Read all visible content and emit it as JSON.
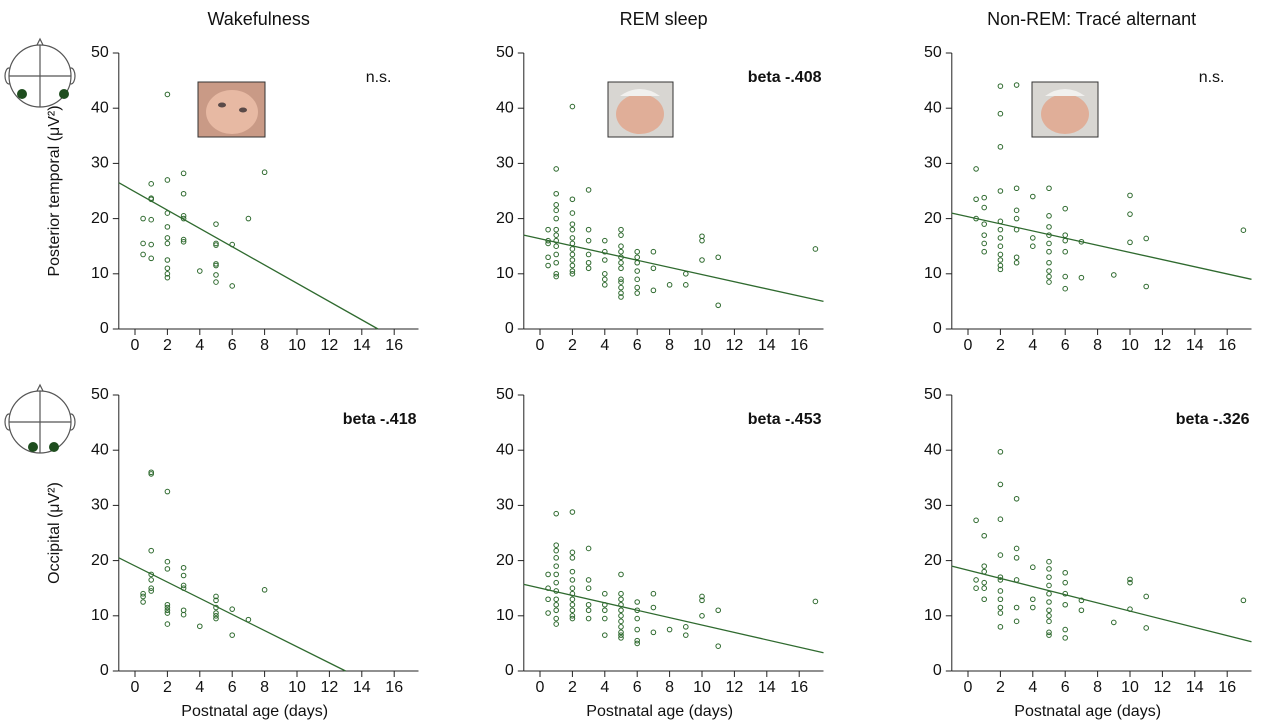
{
  "chart_data": [
    {
      "type": "scatter",
      "title": "Wakefulness",
      "y_label": "Posterior temporal (μV²)",
      "annotation": "n.s.",
      "color": "#2f6a2f",
      "xlim": [
        -1,
        17.5
      ],
      "ylim": [
        0,
        50
      ],
      "xticks": [
        0,
        2,
        4,
        6,
        8,
        10,
        12,
        14,
        16
      ],
      "yticks": [
        0,
        10,
        20,
        30,
        40,
        50
      ],
      "x": [
        0.5,
        0.5,
        0.5,
        1,
        1,
        1,
        1,
        1,
        1,
        2,
        2,
        2,
        2,
        2,
        2,
        2,
        2,
        2,
        2,
        3,
        3,
        3,
        3,
        3,
        3,
        4,
        5,
        5,
        5,
        5,
        5,
        5,
        5,
        6,
        6,
        7,
        8
      ],
      "values": [
        20,
        15.5,
        13.5,
        26.3,
        23.7,
        23.5,
        19.8,
        15.3,
        12.8,
        42.5,
        27,
        21,
        18.5,
        16.5,
        15.5,
        12.5,
        11,
        10,
        9.3,
        28.2,
        24.5,
        20.5,
        20,
        16.2,
        15.8,
        10.5,
        19,
        15.5,
        15.2,
        11.8,
        11.5,
        9.8,
        8.5,
        15.3,
        7.8,
        20,
        28.4
      ],
      "trend": {
        "x": [
          -1,
          15
        ],
        "values": [
          26.5,
          0
        ]
      }
    },
    {
      "type": "scatter",
      "title": "REM sleep",
      "annotation": "beta -.408",
      "color": "#2f6a2f",
      "xlim": [
        -1,
        17.5
      ],
      "ylim": [
        0,
        50
      ],
      "xticks": [
        0,
        2,
        4,
        6,
        8,
        10,
        12,
        14,
        16
      ],
      "yticks": [
        0,
        10,
        20,
        30,
        40,
        50
      ],
      "x": [
        0.5,
        0.5,
        0.5,
        0.5,
        0.5,
        1,
        1,
        1,
        1,
        1,
        1,
        1,
        1,
        1,
        1,
        1,
        1,
        1,
        2,
        2,
        2,
        2,
        2,
        2,
        2,
        2,
        2,
        2,
        2,
        2,
        2,
        3,
        3,
        3,
        3,
        3,
        3,
        4,
        4,
        4,
        4,
        4,
        4,
        5,
        5,
        5,
        5,
        5,
        5,
        5,
        5,
        5,
        5,
        5,
        5,
        6,
        6,
        6,
        6,
        6,
        6,
        6,
        7,
        7,
        7,
        8,
        9,
        9,
        10,
        10,
        10,
        11,
        11,
        17
      ],
      "values": [
        18,
        16,
        15.5,
        13,
        11.5,
        29,
        24.5,
        22.5,
        21.5,
        20,
        18,
        17,
        16,
        15,
        13.5,
        12,
        10,
        9.5,
        40.3,
        23.5,
        21,
        19,
        18,
        16.5,
        15.5,
        14.5,
        13.5,
        12.5,
        11.5,
        10.5,
        10,
        25.2,
        18,
        16,
        13.5,
        12,
        11,
        16,
        14,
        12.5,
        10,
        9,
        8,
        18,
        17,
        15,
        14,
        13,
        12,
        11,
        9,
        8.5,
        7.5,
        6.5,
        5.8,
        14,
        13,
        12,
        10.5,
        9,
        7.5,
        6.5,
        14,
        11,
        7,
        8,
        10,
        8,
        16.8,
        16,
        12.5,
        13,
        4.3,
        14.5
      ],
      "trend": {
        "x": [
          -1,
          17.5
        ],
        "values": [
          17,
          5
        ]
      }
    },
    {
      "type": "scatter",
      "title": "Non-REM: Tracé alternant",
      "annotation": "n.s.",
      "color": "#2f6a2f",
      "xlim": [
        -1,
        17.5
      ],
      "ylim": [
        0,
        50
      ],
      "xticks": [
        0,
        2,
        4,
        6,
        8,
        10,
        12,
        14,
        16
      ],
      "yticks": [
        0,
        10,
        20,
        30,
        40,
        50
      ],
      "x": [
        0.5,
        0.5,
        0.5,
        1,
        1,
        1,
        1,
        1,
        1,
        2,
        2,
        2,
        2,
        2,
        2,
        2,
        2,
        2,
        2,
        2,
        2,
        3,
        3,
        3,
        3,
        3,
        3,
        3,
        4,
        4,
        4,
        5,
        5,
        5,
        5,
        5,
        5,
        5,
        5,
        5,
        5,
        6,
        6,
        6,
        6,
        6,
        6,
        7,
        7,
        9,
        10,
        10,
        10,
        11,
        11,
        17
      ],
      "values": [
        29,
        23.5,
        20,
        23.8,
        22,
        19,
        17,
        15.5,
        14,
        44,
        39,
        33,
        25,
        19.5,
        18,
        16.5,
        15,
        13.5,
        12.5,
        11.5,
        10.8,
        44.2,
        25.5,
        21.5,
        20,
        18,
        13,
        12,
        24,
        16.5,
        15,
        25.5,
        20.5,
        18.5,
        17,
        15.5,
        14,
        12,
        10.5,
        9.5,
        8.5,
        21.8,
        17,
        16,
        14,
        9.5,
        7.3,
        15.8,
        9.3,
        9.8,
        24.2,
        20.8,
        15.7,
        16.4,
        7.7,
        17.9
      ],
      "trend": {
        "x": [
          -1,
          17.5
        ],
        "values": [
          21,
          9
        ]
      }
    },
    {
      "type": "scatter",
      "y_label": "Occipital (μV²)",
      "x_label": "Postnatal age (days)",
      "annotation": "beta -.418",
      "color": "#2f6a2f",
      "xlim": [
        -1,
        17.5
      ],
      "ylim": [
        0,
        50
      ],
      "xticks": [
        0,
        2,
        4,
        6,
        8,
        10,
        12,
        14,
        16
      ],
      "yticks": [
        0,
        10,
        20,
        30,
        40,
        50
      ],
      "x": [
        0.5,
        0.5,
        0.5,
        1,
        1,
        1,
        1,
        1,
        1,
        1,
        2,
        2,
        2,
        2,
        2,
        2,
        2,
        2,
        3,
        3,
        3,
        3,
        3,
        3,
        4,
        5,
        5,
        5,
        5,
        5,
        5,
        6,
        6,
        7,
        8
      ],
      "values": [
        14,
        13.5,
        12.5,
        36,
        35.7,
        21.8,
        17.5,
        16.5,
        15,
        14.5,
        32.5,
        19.8,
        18.5,
        12,
        11.5,
        11,
        10.5,
        8.5,
        18.7,
        17.3,
        15.5,
        15,
        11,
        10.2,
        8.1,
        13.5,
        12.8,
        11.5,
        10.5,
        10,
        9.5,
        11.2,
        6.5,
        9.3,
        14.7
      ],
      "trend": {
        "x": [
          -1,
          13
        ],
        "values": [
          20.5,
          0
        ]
      }
    },
    {
      "type": "scatter",
      "x_label": "Postnatal age (days)",
      "annotation": "beta -.453",
      "color": "#2f6a2f",
      "xlim": [
        -1,
        17.5
      ],
      "ylim": [
        0,
        50
      ],
      "xticks": [
        0,
        2,
        4,
        6,
        8,
        10,
        12,
        14,
        16
      ],
      "yticks": [
        0,
        10,
        20,
        30,
        40,
        50
      ],
      "x": [
        0.5,
        0.5,
        0.5,
        0.5,
        1,
        1,
        1,
        1,
        1,
        1,
        1,
        1,
        1,
        1,
        1,
        1,
        1,
        2,
        2,
        2,
        2,
        2,
        2,
        2,
        2,
        2,
        2,
        2,
        2,
        3,
        3,
        3,
        3,
        3,
        3,
        4,
        4,
        4,
        4,
        4,
        5,
        5,
        5,
        5,
        5,
        5,
        5,
        5,
        5,
        5,
        5,
        6,
        6,
        6,
        6,
        6,
        6,
        7,
        7,
        7,
        8,
        9,
        9,
        10,
        10,
        10,
        11,
        11,
        17
      ],
      "values": [
        17.5,
        15,
        13,
        10.5,
        28.5,
        22.8,
        21.8,
        20.5,
        19,
        17.5,
        16,
        14.5,
        13,
        12,
        11,
        9.5,
        8.5,
        28.8,
        21.5,
        20.5,
        18,
        16.5,
        15,
        14,
        13,
        12,
        11,
        10,
        9.5,
        22.2,
        16.5,
        15,
        12,
        11,
        9.5,
        14,
        12,
        11,
        9.5,
        6.5,
        17.5,
        14,
        13,
        12,
        11,
        10,
        9,
        8,
        7,
        6.5,
        6,
        12.5,
        11,
        9.5,
        7.5,
        5.5,
        5,
        14,
        11.5,
        7,
        7.5,
        8,
        6.5,
        13.5,
        12.8,
        10,
        11,
        4.5,
        12.6
      ],
      "trend": {
        "x": [
          -1,
          17.5
        ],
        "values": [
          15.7,
          3.3
        ]
      }
    },
    {
      "type": "scatter",
      "x_label": "Postnatal age (days)",
      "annotation": "beta -.326",
      "color": "#2f6a2f",
      "xlim": [
        -1,
        17.5
      ],
      "ylim": [
        0,
        50
      ],
      "xticks": [
        0,
        2,
        4,
        6,
        8,
        10,
        12,
        14,
        16
      ],
      "yticks": [
        0,
        10,
        20,
        30,
        40,
        50
      ],
      "x": [
        0.5,
        0.5,
        0.5,
        1,
        1,
        1,
        1,
        1,
        1,
        2,
        2,
        2,
        2,
        2,
        2,
        2,
        2,
        2,
        2,
        2,
        3,
        3,
        3,
        3,
        3,
        3,
        4,
        4,
        4,
        5,
        5,
        5,
        5,
        5,
        5,
        5,
        5,
        5,
        5,
        5,
        6,
        6,
        6,
        6,
        6,
        6,
        7,
        7,
        9,
        10,
        10,
        10,
        11,
        11,
        17
      ],
      "values": [
        27.3,
        16.5,
        15,
        24.5,
        19,
        18,
        16,
        15,
        13,
        39.7,
        33.8,
        27.5,
        21,
        17,
        16.5,
        14.5,
        13,
        11.5,
        10.5,
        8,
        31.2,
        22.2,
        20.5,
        16.5,
        11.5,
        9,
        18.8,
        13,
        11.5,
        19.8,
        18.5,
        17,
        15.5,
        14,
        12.5,
        11,
        10,
        9,
        7,
        6.5,
        17.8,
        16,
        14,
        12,
        7.5,
        6,
        12.8,
        11,
        8.8,
        16.6,
        16,
        11.2,
        13.5,
        7.8,
        12.8
      ],
      "trend": {
        "x": [
          -1,
          17.5
        ],
        "values": [
          19,
          5.3
        ]
      }
    }
  ]
}
